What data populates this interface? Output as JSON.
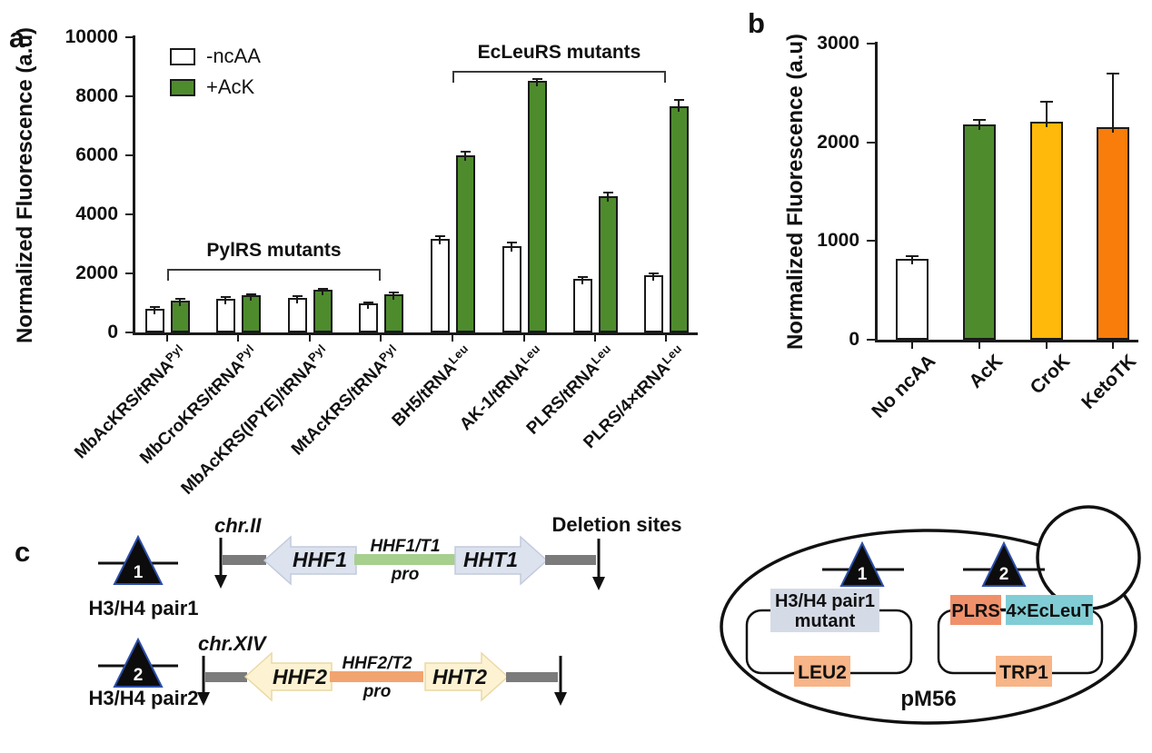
{
  "figure": {
    "panel_labels": {
      "a": "a",
      "b": "b",
      "c": "c"
    }
  },
  "chart_data": [
    {
      "id": "a",
      "type": "bar",
      "title": "",
      "ylabel": "Normalized Fluorescence (a.u)",
      "xlabel": "",
      "ylim": [
        0,
        10000
      ],
      "yticks": [
        "0",
        "2000",
        "4000",
        "6000",
        "8000",
        "10000"
      ],
      "grid": false,
      "legend_position": "top-left-inside",
      "categories": [
        {
          "base": "MbAcKRS/tRNA",
          "sup": "Pyl"
        },
        {
          "base": "MbCroKRS/tRNA",
          "sup": "Pyl"
        },
        {
          "base": "MbAcKRS(IPYE)/tRNA",
          "sup": "Pyl"
        },
        {
          "base": "MtAcKRS/tRNA",
          "sup": "Pyl"
        },
        {
          "base": "BH5/tRNA",
          "sup": "Leu"
        },
        {
          "base": "AK-1/tRNA",
          "sup": "Leu"
        },
        {
          "base": "PLRS/tRNA",
          "sup": "Leu"
        },
        {
          "base": "PLRS/4×tRNA",
          "sup": "Leu"
        }
      ],
      "series": [
        {
          "name": "-ncAA",
          "color": "#ffffff",
          "values": [
            800,
            1130,
            1170,
            980,
            3170,
            2920,
            1820,
            1940
          ],
          "errors": [
            50,
            60,
            60,
            50,
            90,
            120,
            60,
            70
          ]
        },
        {
          "name": "+AcK",
          "color": "#4e8b2d",
          "values": [
            1080,
            1250,
            1440,
            1300,
            6000,
            8520,
            4620,
            7660
          ],
          "errors": [
            70,
            40,
            40,
            40,
            120,
            50,
            130,
            230
          ]
        }
      ],
      "annotations": [
        {
          "label": "PylRS mutants",
          "from": 0,
          "to": 3,
          "y": 2150
        },
        {
          "label": "EcLeuRS mutants",
          "from": 4,
          "to": 7,
          "y": 8850
        }
      ]
    },
    {
      "id": "b",
      "type": "bar",
      "title": "",
      "ylabel": "Normalized Fluorescence (a.u)",
      "xlabel": "",
      "ylim": [
        0,
        3000
      ],
      "yticks": [
        "0",
        "1000",
        "2000",
        "3000"
      ],
      "grid": false,
      "categories": [
        {
          "base": "No ncAA"
        },
        {
          "base": "AcK"
        },
        {
          "base": "CroK"
        },
        {
          "base": "KetoTK"
        }
      ],
      "series": [
        {
          "name": "",
          "colors": [
            "#ffffff",
            "#4e8b2d",
            "#ffb90a",
            "#f97d0a"
          ],
          "values": [
            820,
            2180,
            2210,
            2150
          ],
          "errors": [
            30,
            45,
            200,
            550
          ]
        }
      ]
    }
  ],
  "diagram": {
    "deletion_sites_label": "Deletion sites",
    "sites": [
      {
        "marker": "1",
        "pair_label": "H3/H4 pair1",
        "chromosome": "chr.II",
        "left_gene": "HHF1",
        "promoter_top": "HHF1/T1",
        "promoter_bottom": "pro",
        "right_gene": "HHT1"
      },
      {
        "marker": "2",
        "pair_label": "H3/H4 pair2",
        "chromosome": "chr.XIV",
        "left_gene": "HHF2",
        "promoter_top": "HHF2/T2",
        "promoter_bottom": "pro",
        "right_gene": "HHT2"
      }
    ],
    "cell": {
      "plasmid1_marker": "1",
      "plasmid1_top_line1": "H3/H4 pair1",
      "plasmid1_top_line2": "mutant",
      "plasmid1_bottom": "LEU2",
      "plasmid2_marker": "2",
      "plasmid2_top_left": "PLRS",
      "plasmid2_top_right": "4×EcLeuT",
      "plasmid2_bottom": "TRP1",
      "plasmid_name": "pM56"
    },
    "colors": {
      "gene_arrow_1": "#dce2ee",
      "gene_arrow_1_edge": "#c3cadb",
      "promoter_1": "#a7cf8e",
      "gene_arrow_2": "#fdf3d3",
      "gene_arrow_2_edge": "#ead9a5",
      "promoter_2": "#f2a470",
      "chromosome_bar": "#7b7b7b",
      "mutant_box": "#d5dbe6",
      "marker_box": "#f7b588",
      "plrs_box": "#f0906b",
      "ecleut_box": "#80cdd5",
      "triangle_edge": "#2b4ea8"
    }
  }
}
